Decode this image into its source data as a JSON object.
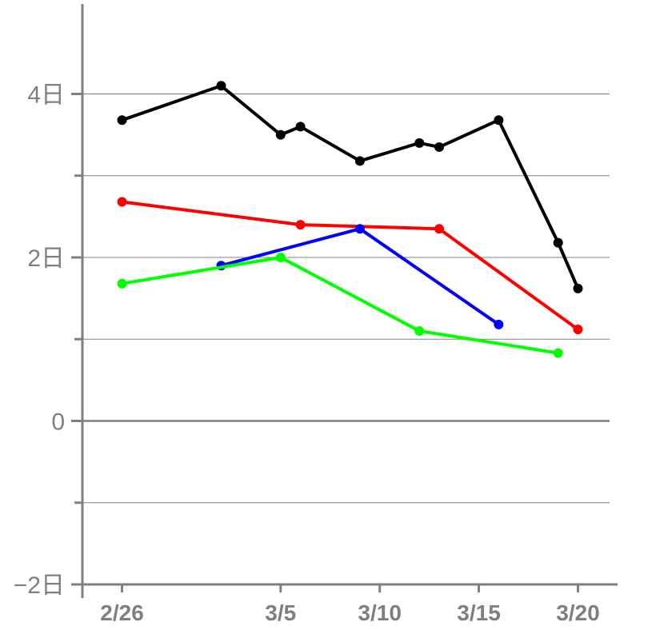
{
  "chart_data": {
    "type": "line",
    "x_axis": {
      "type": "date",
      "range": [
        "2/24",
        "3/22"
      ],
      "tick_labels": [
        {
          "x": "2/26",
          "label": "2/26"
        },
        {
          "x": "3/5",
          "label": "3/5"
        },
        {
          "x": "3/10",
          "label": "3/10"
        },
        {
          "x": "3/15",
          "label": "3/15"
        },
        {
          "x": "3/20",
          "label": "3/20"
        }
      ]
    },
    "y_axis": {
      "range": [
        -2,
        5.1
      ],
      "tick_labels": [
        {
          "y": 4,
          "label": "4日"
        },
        {
          "y": 2,
          "label": "2日"
        },
        {
          "y": 0,
          "label": "0"
        },
        {
          "y": -2,
          "label": "−2日"
        }
      ],
      "minor_ticks": [
        3,
        1,
        -1
      ]
    },
    "grid": {
      "horizontal_lines": [
        4,
        3,
        2,
        1,
        0,
        -1
      ],
      "x_from": "2/24",
      "x_to": "3/20"
    },
    "series": [
      {
        "color": "#000000",
        "points": [
          {
            "x": "2/26",
            "y": 3.68
          },
          {
            "x": "3/2",
            "y": 4.1
          },
          {
            "x": "3/5",
            "y": 3.5
          },
          {
            "x": "3/6",
            "y": 3.6
          },
          {
            "x": "3/9",
            "y": 3.18
          },
          {
            "x": "3/12",
            "y": 3.4
          },
          {
            "x": "3/13",
            "y": 3.35
          },
          {
            "x": "3/16",
            "y": 3.68
          },
          {
            "x": "3/19",
            "y": 2.18
          },
          {
            "x": "3/20",
            "y": 1.62
          }
        ]
      },
      {
        "color": "#ff0000",
        "points": [
          {
            "x": "2/26",
            "y": 2.68
          },
          {
            "x": "3/6",
            "y": 2.4
          },
          {
            "x": "3/13",
            "y": 2.35
          },
          {
            "x": "3/20",
            "y": 1.12
          }
        ]
      },
      {
        "color": "#0000ff",
        "points": [
          {
            "x": "3/2",
            "y": 1.9
          },
          {
            "x": "3/9",
            "y": 2.35
          },
          {
            "x": "3/16",
            "y": 1.18
          }
        ]
      },
      {
        "color": "#00ff00",
        "points": [
          {
            "x": "2/26",
            "y": 1.68
          },
          {
            "x": "3/5",
            "y": 2.0
          },
          {
            "x": "3/12",
            "y": 1.1
          },
          {
            "x": "3/19",
            "y": 0.83
          }
        ]
      }
    ]
  }
}
